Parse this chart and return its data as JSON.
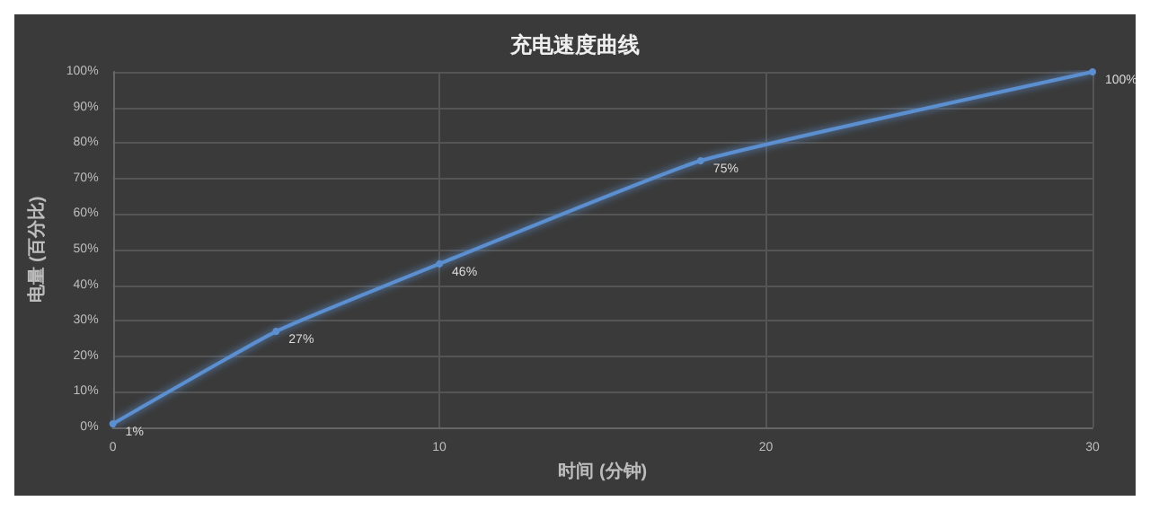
{
  "chart_data": {
    "type": "line",
    "title": "充电速度曲线",
    "xlabel": "时间 (分钟)",
    "ylabel": "电量 (百分比)",
    "x": [
      0,
      5,
      10,
      18,
      30
    ],
    "series": [
      {
        "color": "#5b8fd0",
        "values": [
          1,
          27,
          46,
          75,
          100
        ],
        "value_labels": [
          "1%",
          "27%",
          "46%",
          "75%",
          "100%"
        ]
      }
    ],
    "xlim": [
      0,
      30
    ],
    "xticks": [
      0,
      10,
      20,
      30
    ],
    "ylim": [
      0,
      100
    ],
    "yticks": [
      {
        "value": 0,
        "label": "0%"
      },
      {
        "value": 10,
        "label": "10%"
      },
      {
        "value": 20,
        "label": "20%"
      },
      {
        "value": 30,
        "label": "30%"
      },
      {
        "value": 40,
        "label": "40%"
      },
      {
        "value": 50,
        "label": "50%"
      },
      {
        "value": 60,
        "label": "60%"
      },
      {
        "value": 70,
        "label": "70%"
      },
      {
        "value": 80,
        "label": "80%"
      },
      {
        "value": 90,
        "label": "90%"
      },
      {
        "value": 100,
        "label": "100%"
      }
    ],
    "grid": true,
    "marker": "circle"
  }
}
